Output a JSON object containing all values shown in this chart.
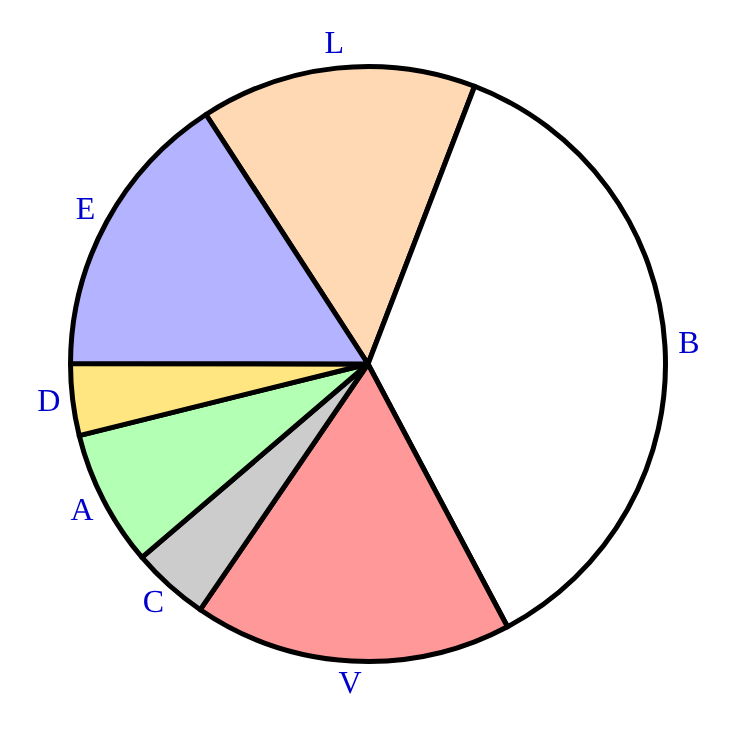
{
  "chart_data": {
    "type": "pie",
    "categories": [
      "L",
      "B",
      "V",
      "C",
      "A",
      "D",
      "E"
    ],
    "values": [
      15.0,
      36.4,
      17.3,
      4.2,
      7.4,
      3.9,
      15.8
    ],
    "colors": [
      "#ffd9b3",
      "#ffffff",
      "#ff9999",
      "#cccccc",
      "#b3ffb3",
      "#ffe680",
      "#b3b3ff"
    ],
    "legend": false
  }
}
